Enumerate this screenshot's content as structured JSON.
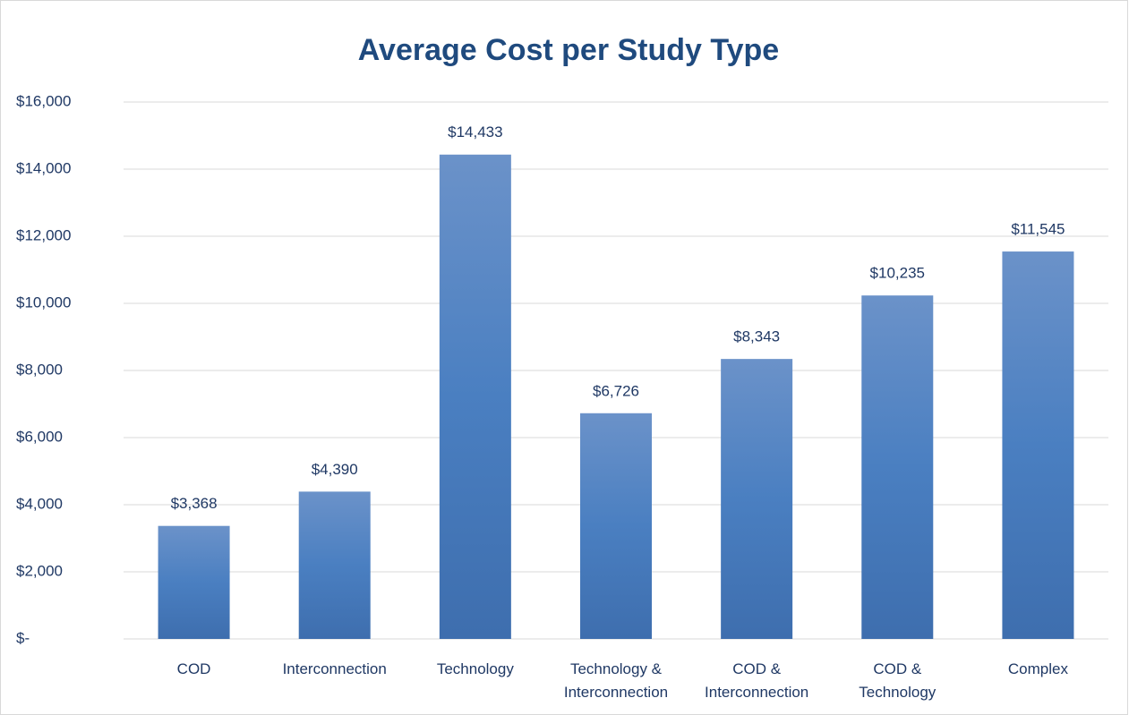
{
  "chart_data": {
    "type": "bar",
    "title": "Average Cost per Study Type",
    "categories": [
      "COD",
      "Interconnection",
      "Technology",
      "Technology & Interconnection",
      "COD & Interconnection",
      "COD & Technology",
      "Complex"
    ],
    "values": [
      3368,
      4390,
      14433,
      6726,
      8343,
      10235,
      11545
    ],
    "value_labels": [
      "$3,368",
      "$4,390",
      "$14,433",
      "$6,726",
      "$8,343",
      "$10,235",
      "$11,545"
    ],
    "color": "#4a7fc1",
    "ylim": [
      0,
      16000
    ],
    "yticks": [
      {
        "value": 0,
        "label": "$-"
      },
      {
        "value": 2000,
        "label": "$2,000"
      },
      {
        "value": 4000,
        "label": "$4,000"
      },
      {
        "value": 6000,
        "label": "$6,000"
      },
      {
        "value": 8000,
        "label": "$8,000"
      },
      {
        "value": 10000,
        "label": "$10,000"
      },
      {
        "value": 12000,
        "label": "$12,000"
      },
      {
        "value": 14000,
        "label": "$14,000"
      },
      {
        "value": 16000,
        "label": "$16,000"
      }
    ],
    "grid": true
  }
}
